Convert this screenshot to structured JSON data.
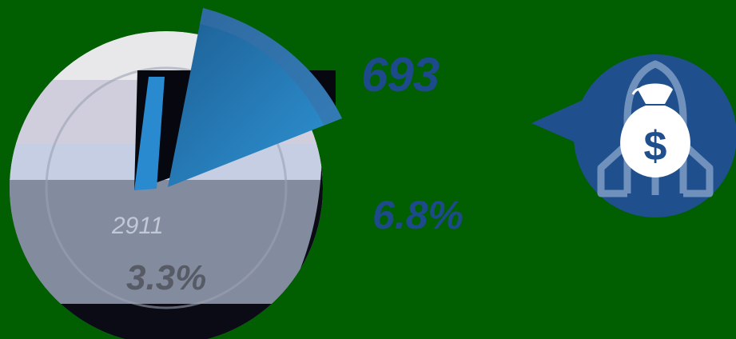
{
  "labels": {
    "big_number": "693",
    "big_percent": "6.8%",
    "pie_value": "2911",
    "pie_percent": "3.3%"
  },
  "icons": {
    "money": "money-bag-icon",
    "rocket": "rocket-icon"
  },
  "colors": {
    "background": "#015e01",
    "accent_blue": "#1c4a8a",
    "icon_circle": "#1f4f8d",
    "slice_blue": "#2a8ad0"
  }
}
